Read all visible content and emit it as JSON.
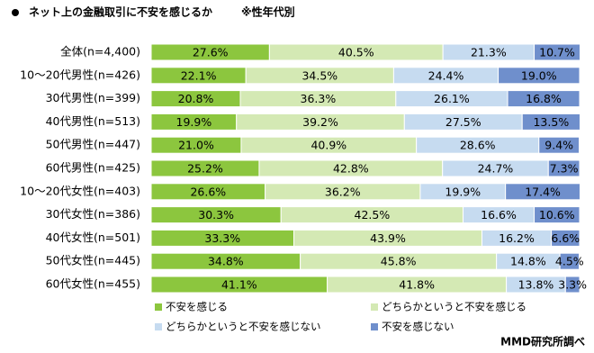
{
  "chart_data": {
    "type": "stacked-bar-horizontal",
    "title": "ネット上の金融取引に不安を感じるか",
    "subtitle": "※性年代別",
    "source": "MMD研究所調べ",
    "xlim": [
      0,
      100
    ],
    "categories": [
      "全体(n=4,400)",
      "10～20代男性(n=426)",
      "30代男性(n=399)",
      "40代男性(n=513)",
      "50代男性(n=447)",
      "60代男性(n=425)",
      "10～20代女性(n=403)",
      "30代女性(n=386)",
      "40代女性(n=501)",
      "50代女性(n=445)",
      "60代女性(n=455)"
    ],
    "series": [
      {
        "name": "不安を感じる",
        "color": "#8cc63e",
        "values": [
          27.6,
          22.1,
          20.8,
          19.9,
          21.0,
          25.2,
          26.6,
          30.3,
          33.3,
          34.8,
          41.1
        ],
        "value_labels": [
          "27.6%",
          "22.1%",
          "20.8%",
          "19.9%",
          "21.0%",
          "25.2%",
          "26.6%",
          "30.3%",
          "33.3%",
          "34.8%",
          "41.1%"
        ]
      },
      {
        "name": "どちらかというと不安を感じる",
        "color": "#d4e9b4",
        "values": [
          40.5,
          34.5,
          36.3,
          39.2,
          40.9,
          42.8,
          36.2,
          42.5,
          43.9,
          45.8,
          41.8
        ],
        "value_labels": [
          "40.5%",
          "34.5%",
          "36.3%",
          "39.2%",
          "40.9%",
          "42.8%",
          "36.2%",
          "42.5%",
          "43.9%",
          "45.8%",
          "41.8%"
        ]
      },
      {
        "name": "どちらかというと不安を感じない",
        "color": "#c6dbf0",
        "values": [
          21.3,
          24.4,
          26.1,
          27.5,
          28.6,
          24.7,
          19.9,
          16.6,
          16.2,
          14.8,
          13.8
        ],
        "value_labels": [
          "21.3%",
          "24.4%",
          "26.1%",
          "27.5%",
          "28.6%",
          "24.7%",
          "19.9%",
          "16.6%",
          "16.2%",
          "14.8%",
          "13.8%"
        ]
      },
      {
        "name": "不安を感じない",
        "color": "#6f8fcc",
        "values": [
          10.7,
          19.0,
          16.8,
          13.5,
          9.4,
          7.3,
          17.4,
          10.6,
          6.6,
          4.5,
          3.3
        ],
        "value_labels": [
          "10.7%",
          "19.0%",
          "16.8%",
          "13.5%",
          "9.4%",
          "7.3%",
          "17.4%",
          "10.6%",
          "6.6%",
          "4.5%",
          "3.3%"
        ]
      }
    ]
  }
}
